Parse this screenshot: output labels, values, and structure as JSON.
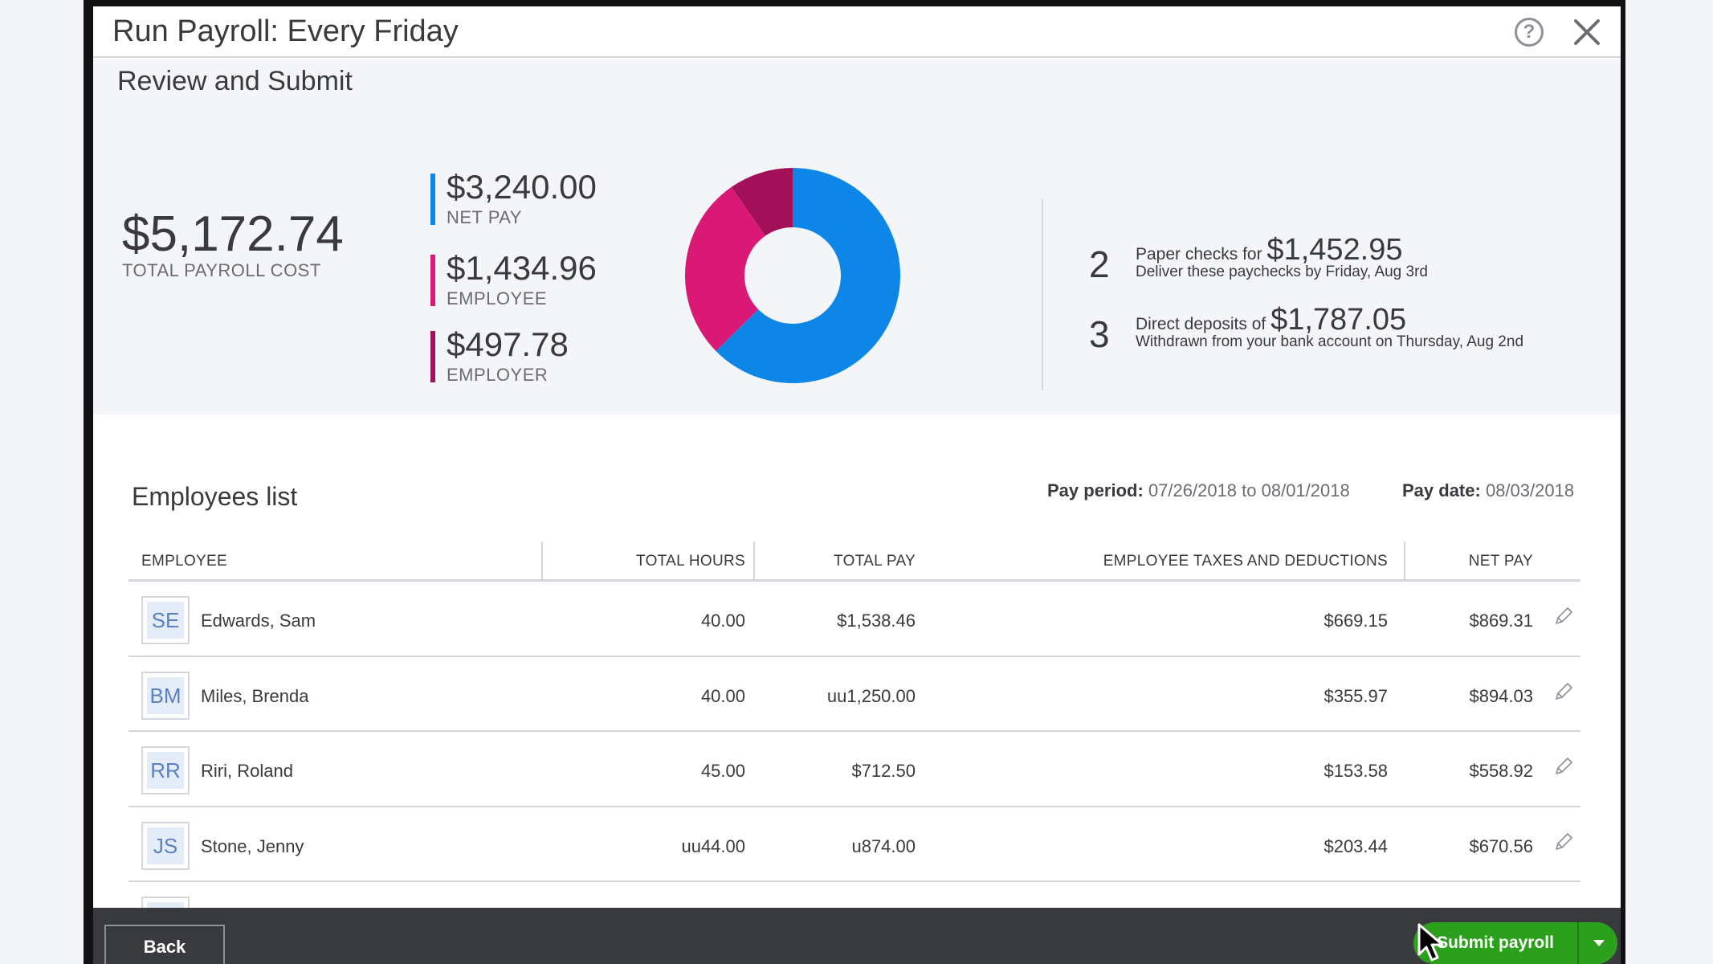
{
  "window": {
    "title": "Run Payroll: Every Friday"
  },
  "summary": {
    "heading": "Review and Submit",
    "total": {
      "amount": "$5,172.74",
      "label": "TOTAL PAYROLL COST"
    },
    "breakdown": [
      {
        "amount": "$3,240.00",
        "label": "NET PAY",
        "color": "#0d86e8",
        "value": 3240.0
      },
      {
        "amount": "$1,434.96",
        "label": "EMPLOYEE",
        "color": "#d91975",
        "value": 1434.96
      },
      {
        "amount": "$497.78",
        "label": "EMPLOYER",
        "color": "#a3105a",
        "value": 497.78
      }
    ],
    "paper_checks": {
      "count": "2",
      "prefix": "Paper checks for",
      "amount": "$1,452.95",
      "note": "Deliver these paychecks by Friday, Aug 3rd"
    },
    "direct_deposits": {
      "count": "3",
      "prefix": "Direct deposits of",
      "amount": "$1,787.05",
      "note": "Withdrawn from your bank account on Thursday, Aug 2nd"
    }
  },
  "employees": {
    "heading": "Employees list",
    "pay_period_label": "Pay period:",
    "pay_period_value": "07/26/2018 to 08/01/2018",
    "pay_date_label": "Pay date:",
    "pay_date_value": "08/03/2018",
    "columns": [
      "EMPLOYEE",
      "TOTAL HOURS",
      "TOTAL PAY",
      "EMPLOYEE TAXES AND DEDUCTIONS",
      "NET PAY"
    ],
    "rows": [
      {
        "initials": "SE",
        "name": "Edwards, Sam",
        "hours": "40.00",
        "total_pay": "$1,538.46",
        "taxes": "$669.15",
        "net_pay": "$869.31"
      },
      {
        "initials": "BM",
        "name": "Miles, Brenda",
        "hours": "40.00",
        "total_pay": "uu1,250.00",
        "taxes": "$355.97",
        "net_pay": "$894.03"
      },
      {
        "initials": "RR",
        "name": "Riri, Roland",
        "hours": "45.00",
        "total_pay": "$712.50",
        "taxes": "$153.58",
        "net_pay": "$558.92"
      },
      {
        "initials": "JS",
        "name": "Stone, Jenny",
        "hours": "uu44.00",
        "total_pay": "u874.00",
        "taxes": "$203.44",
        "net_pay": "$670.56"
      }
    ]
  },
  "footer": {
    "back_label": "Back",
    "submit_label": "Submit payroll"
  },
  "colors": {
    "accent_green": "#2ca01c",
    "net_pay_blue": "#0d86e8",
    "employee_pink": "#d91975",
    "employer_maroon": "#a3105a"
  }
}
